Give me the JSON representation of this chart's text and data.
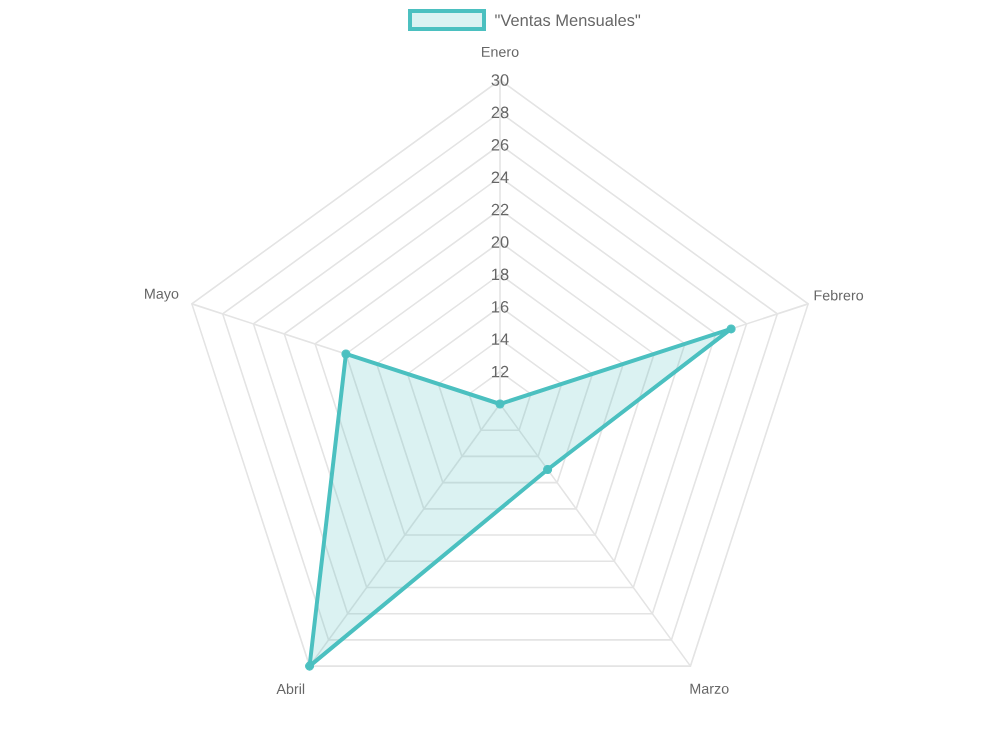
{
  "chart_data": {
    "type": "radar",
    "categories": [
      "Enero",
      "Febrero",
      "Marzo",
      "Abril",
      "Mayo"
    ],
    "series": [
      {
        "name": "\"Ventas Mensuales\"",
        "color": "#4bc0c0",
        "values": [
          10,
          25,
          15,
          30,
          20
        ]
      }
    ],
    "ylim": [
      10,
      30
    ],
    "yticks": [
      12,
      14,
      16,
      18,
      20,
      22,
      24,
      26,
      28,
      30
    ],
    "grid": true,
    "legend": "top",
    "marker": "circle",
    "line_style": "solid"
  }
}
